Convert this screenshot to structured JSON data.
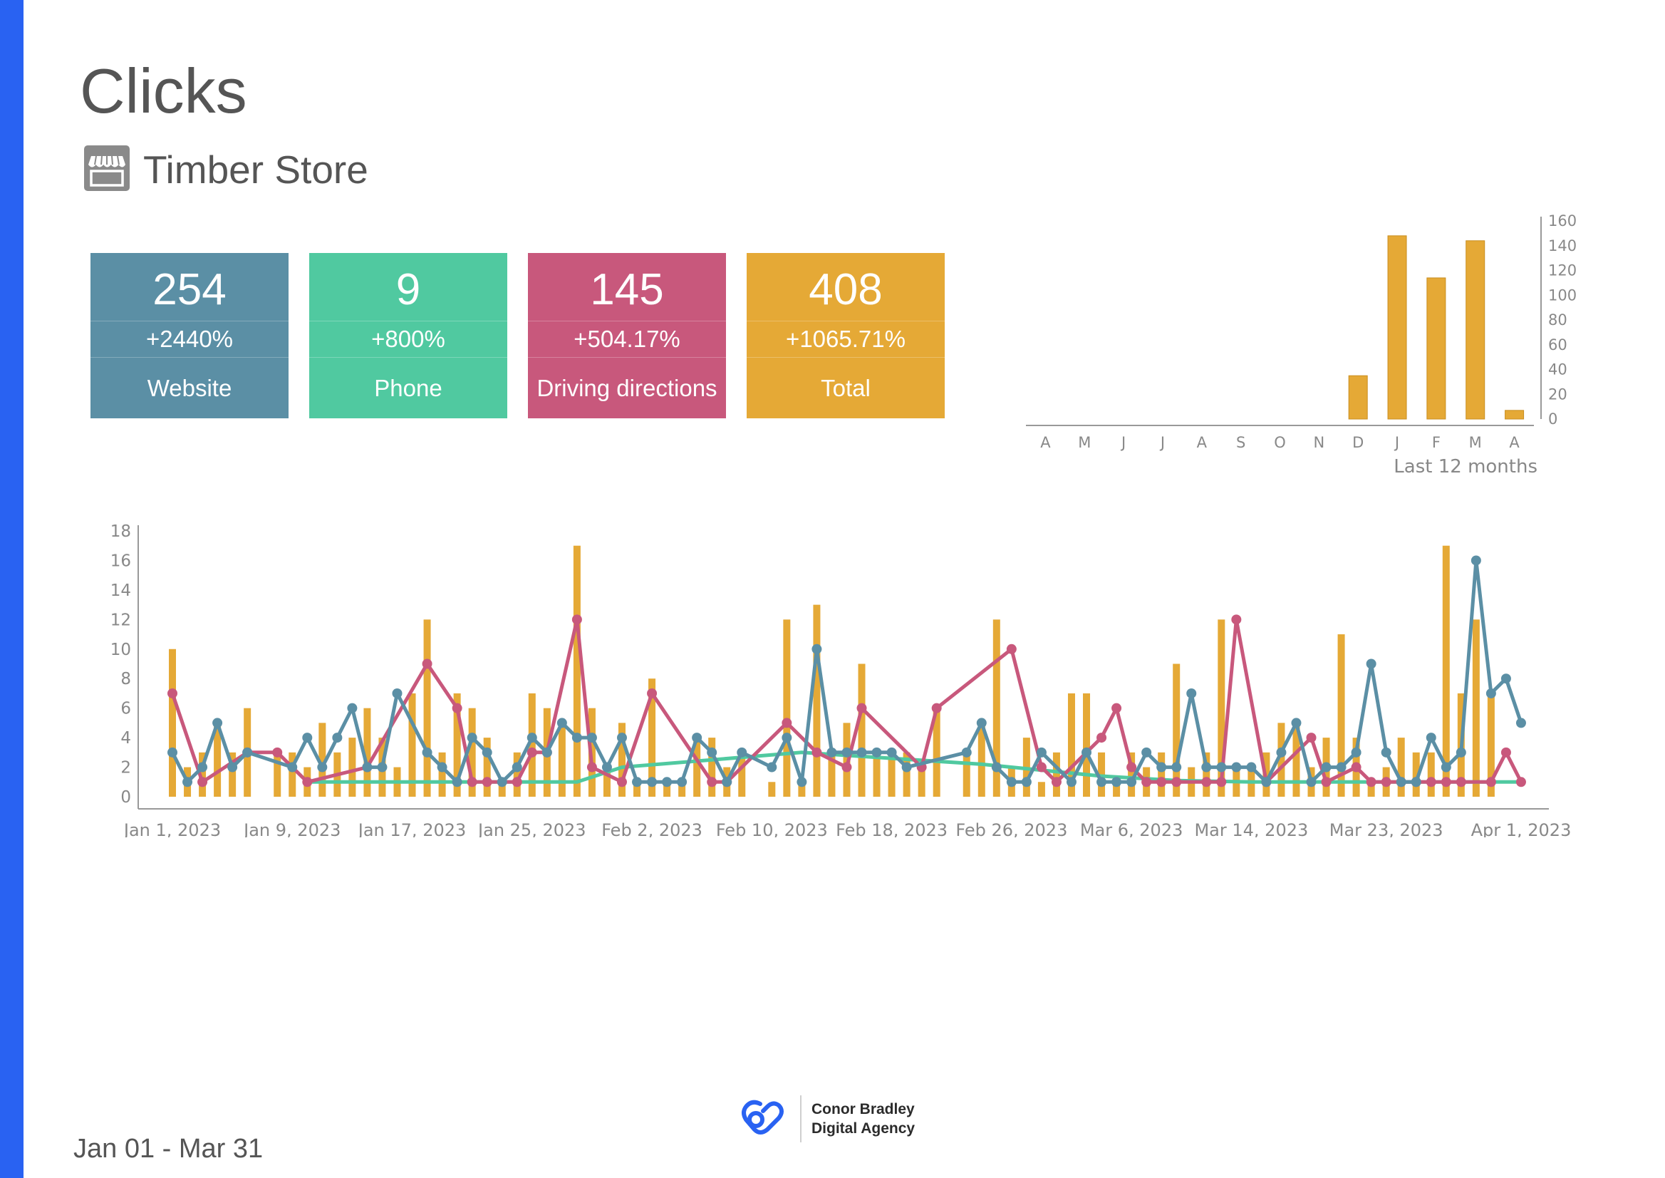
{
  "report": {
    "title": "Clicks",
    "store_name": "Timber Store",
    "date_range": "Jan 01 - Mar 31"
  },
  "kpis": [
    {
      "value": "254",
      "change": "+2440%",
      "label": "Website",
      "color": "#5b8fa5"
    },
    {
      "value": "9",
      "change": "+800%",
      "label": "Phone",
      "color": "#50c9a0"
    },
    {
      "value": "145",
      "change": "+504.17%",
      "label": "Driving directions",
      "color": "#c8587c"
    },
    {
      "value": "408",
      "change": "+1065.71%",
      "label": "Total",
      "color": "#e5a936"
    }
  ],
  "footer": {
    "brand_line1": "Conor Bradley",
    "brand_line2": "Digital Agency",
    "brand_color": "#2962f2"
  },
  "colors": {
    "sidebar": "#2962f2",
    "bars": "#e5a936",
    "website": "#5b8fa5",
    "phone": "#50c9a0",
    "directions": "#c8587c",
    "axis_text": "#888888"
  },
  "chart_data": [
    {
      "type": "bar",
      "xlabel": "Last 12 months",
      "categories": [
        "A",
        "M",
        "J",
        "J",
        "A",
        "S",
        "O",
        "N",
        "D",
        "J",
        "F",
        "M",
        "A"
      ],
      "values": [
        0,
        0,
        0,
        0,
        0,
        0,
        0,
        0,
        35,
        148,
        114,
        144,
        7
      ],
      "ylim": [
        0,
        160
      ],
      "yticks": [
        "0",
        "20",
        "40",
        "60",
        "80",
        "100",
        "120",
        "140",
        "160"
      ],
      "y_axis_side": "right"
    },
    {
      "type": "bar+line",
      "ylim": [
        0,
        18
      ],
      "yticks": [
        "0",
        "2",
        "4",
        "6",
        "8",
        "10",
        "12",
        "14",
        "16",
        "18"
      ],
      "xticks": [
        "Jan 1, 2023",
        "Jan 9, 2023",
        "Jan 17, 2023",
        "Jan 25, 2023",
        "Feb 2, 2023",
        "Feb 10, 2023",
        "Feb 18, 2023",
        "Feb 26, 2023",
        "Mar 6, 2023",
        "Mar 14, 2023",
        "Mar 23, 2023",
        "Apr 1, 2023"
      ],
      "grid": false,
      "bars": [
        [
          0,
          10
        ],
        [
          1,
          2
        ],
        [
          2,
          3
        ],
        [
          3,
          5
        ],
        [
          4,
          3
        ],
        [
          5,
          6
        ],
        [
          7,
          3
        ],
        [
          8,
          3
        ],
        [
          9,
          2
        ],
        [
          10,
          5
        ],
        [
          11,
          3
        ],
        [
          12,
          4
        ],
        [
          13,
          6
        ],
        [
          14,
          4
        ],
        [
          15,
          2
        ],
        [
          16,
          7
        ],
        [
          17,
          12
        ],
        [
          18,
          3
        ],
        [
          19,
          7
        ],
        [
          20,
          6
        ],
        [
          21,
          4
        ],
        [
          22,
          1
        ],
        [
          23,
          3
        ],
        [
          24,
          7
        ],
        [
          25,
          6
        ],
        [
          26,
          5
        ],
        [
          27,
          17
        ],
        [
          28,
          6
        ],
        [
          29,
          2
        ],
        [
          30,
          5
        ],
        [
          31,
          1
        ],
        [
          32,
          8
        ],
        [
          33,
          1
        ],
        [
          34,
          1
        ],
        [
          35,
          4
        ],
        [
          36,
          4
        ],
        [
          37,
          2
        ],
        [
          38,
          3
        ],
        [
          40,
          1
        ],
        [
          41,
          12
        ],
        [
          42,
          1
        ],
        [
          43,
          13
        ],
        [
          44,
          3
        ],
        [
          45,
          5
        ],
        [
          46,
          9
        ],
        [
          47,
          3
        ],
        [
          48,
          3
        ],
        [
          49,
          3
        ],
        [
          50,
          2
        ],
        [
          51,
          6
        ],
        [
          53,
          3
        ],
        [
          54,
          5
        ],
        [
          55,
          12
        ],
        [
          56,
          2
        ],
        [
          57,
          4
        ],
        [
          58,
          1
        ],
        [
          59,
          3
        ],
        [
          60,
          7
        ],
        [
          61,
          7
        ],
        [
          62,
          3
        ],
        [
          63,
          1
        ],
        [
          64,
          3
        ],
        [
          65,
          2
        ],
        [
          66,
          3
        ],
        [
          67,
          9
        ],
        [
          68,
          2
        ],
        [
          69,
          3
        ],
        [
          70,
          12
        ],
        [
          71,
          2
        ],
        [
          72,
          2
        ],
        [
          73,
          3
        ],
        [
          74,
          5
        ],
        [
          75,
          5
        ],
        [
          76,
          2
        ],
        [
          77,
          4
        ],
        [
          78,
          11
        ],
        [
          79,
          4
        ],
        [
          80,
          1
        ],
        [
          81,
          2
        ],
        [
          82,
          4
        ],
        [
          83,
          3
        ],
        [
          84,
          3
        ],
        [
          85,
          17
        ],
        [
          86,
          7
        ],
        [
          87,
          12
        ],
        [
          88,
          7
        ]
      ],
      "series": [
        {
          "name": "",
          "color": "#5b8fa5",
          "marker": "circle",
          "points": [
            [
              0,
              3
            ],
            [
              1,
              1
            ],
            [
              2,
              2
            ],
            [
              3,
              5
            ],
            [
              4,
              2
            ],
            [
              5,
              3
            ],
            [
              8,
              2
            ],
            [
              9,
              4
            ],
            [
              10,
              2
            ],
            [
              11,
              4
            ],
            [
              12,
              6
            ],
            [
              13,
              2
            ],
            [
              14,
              2
            ],
            [
              15,
              7
            ],
            [
              17,
              3
            ],
            [
              18,
              2
            ],
            [
              19,
              1
            ],
            [
              20,
              4
            ],
            [
              21,
              3
            ],
            [
              22,
              1
            ],
            [
              23,
              2
            ],
            [
              24,
              4
            ],
            [
              25,
              3
            ],
            [
              26,
              5
            ],
            [
              27,
              4
            ],
            [
              28,
              4
            ],
            [
              29,
              2
            ],
            [
              30,
              4
            ],
            [
              31,
              1
            ],
            [
              32,
              1
            ],
            [
              33,
              1
            ],
            [
              34,
              1
            ],
            [
              35,
              4
            ],
            [
              36,
              3
            ],
            [
              37,
              1
            ],
            [
              38,
              3
            ],
            [
              40,
              2
            ],
            [
              41,
              4
            ],
            [
              42,
              1
            ],
            [
              43,
              10
            ],
            [
              44,
              3
            ],
            [
              45,
              3
            ],
            [
              46,
              3
            ],
            [
              47,
              3
            ],
            [
              48,
              3
            ],
            [
              49,
              2
            ],
            [
              53,
              3
            ],
            [
              54,
              5
            ],
            [
              55,
              2
            ],
            [
              56,
              1
            ],
            [
              57,
              1
            ],
            [
              58,
              3
            ],
            [
              60,
              1
            ],
            [
              61,
              3
            ],
            [
              62,
              1
            ],
            [
              63,
              1
            ],
            [
              64,
              1
            ],
            [
              65,
              3
            ],
            [
              66,
              2
            ],
            [
              67,
              2
            ],
            [
              68,
              7
            ],
            [
              69,
              2
            ],
            [
              70,
              2
            ],
            [
              71,
              2
            ],
            [
              72,
              2
            ],
            [
              73,
              1
            ],
            [
              74,
              3
            ],
            [
              75,
              5
            ],
            [
              76,
              1
            ],
            [
              77,
              2
            ],
            [
              78,
              2
            ],
            [
              79,
              3
            ],
            [
              80,
              9
            ],
            [
              81,
              3
            ],
            [
              82,
              1
            ],
            [
              83,
              1
            ],
            [
              84,
              4
            ],
            [
              85,
              2
            ],
            [
              86,
              3
            ],
            [
              87,
              16
            ],
            [
              88,
              7
            ],
            [
              89,
              8
            ],
            [
              90,
              5
            ]
          ]
        },
        {
          "name": "",
          "color": "#c8587c",
          "marker": "circle",
          "points": [
            [
              0,
              7
            ],
            [
              2,
              1
            ],
            [
              5,
              3
            ],
            [
              7,
              3
            ],
            [
              9,
              1
            ],
            [
              13,
              2
            ],
            [
              17,
              9
            ],
            [
              19,
              6
            ],
            [
              20,
              1
            ],
            [
              21,
              1
            ],
            [
              23,
              1
            ],
            [
              24,
              3
            ],
            [
              25,
              3
            ],
            [
              27,
              12
            ],
            [
              28,
              2
            ],
            [
              30,
              1
            ],
            [
              32,
              7
            ],
            [
              36,
              1
            ],
            [
              37,
              1
            ],
            [
              41,
              5
            ],
            [
              43,
              3
            ],
            [
              45,
              2
            ],
            [
              46,
              6
            ],
            [
              50,
              2
            ],
            [
              51,
              6
            ],
            [
              56,
              10
            ],
            [
              58,
              2
            ],
            [
              59,
              1
            ],
            [
              62,
              4
            ],
            [
              63,
              6
            ],
            [
              64,
              2
            ],
            [
              65,
              1
            ],
            [
              66,
              1
            ],
            [
              67,
              1
            ],
            [
              69,
              1
            ],
            [
              70,
              1
            ],
            [
              71,
              12
            ],
            [
              73,
              1
            ],
            [
              76,
              4
            ],
            [
              77,
              1
            ],
            [
              79,
              2
            ],
            [
              80,
              1
            ],
            [
              81,
              1
            ],
            [
              82,
              1
            ],
            [
              83,
              1
            ],
            [
              84,
              1
            ],
            [
              85,
              1
            ],
            [
              86,
              1
            ],
            [
              88,
              1
            ],
            [
              89,
              3
            ],
            [
              90,
              1
            ]
          ]
        },
        {
          "name": "",
          "color": "#50c9a0",
          "marker": "none",
          "points": [
            [
              9,
              1
            ],
            [
              27,
              1
            ],
            [
              30,
              2
            ],
            [
              36,
              2.5
            ],
            [
              42,
              3
            ],
            [
              48,
              2.6
            ],
            [
              54,
              2.2
            ],
            [
              58,
              1.8
            ],
            [
              62,
              1.4
            ],
            [
              67,
              1.1
            ],
            [
              72,
              1
            ],
            [
              80,
              1
            ],
            [
              87,
              1
            ],
            [
              90,
              1
            ]
          ]
        }
      ]
    }
  ]
}
